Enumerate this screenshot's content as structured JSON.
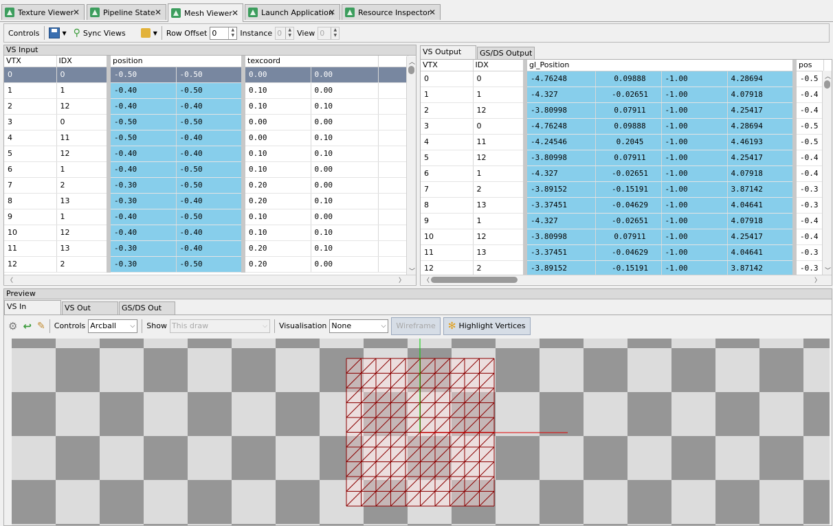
{
  "doc_tabs": [
    {
      "label": "Texture Viewer"
    },
    {
      "label": "Pipeline State"
    },
    {
      "label": "Mesh Viewer"
    },
    {
      "label": "Launch Application"
    },
    {
      "label": "Resource Inspector"
    }
  ],
  "toolbar": {
    "controls_label": "Controls",
    "sync_views_label": "Sync Views",
    "row_offset_label": "Row Offset",
    "row_offset_value": "0",
    "instance_label": "Instance",
    "instance_value": "0",
    "view_label": "View",
    "view_value": "0"
  },
  "vs_input": {
    "title": "VS Input",
    "headers": {
      "vtx": "VTX",
      "idx": "IDX",
      "position": "position",
      "texcoord": "texcoord"
    },
    "rows": [
      [
        "0",
        "0",
        "-0.50",
        "-0.50",
        "0.00",
        "0.00"
      ],
      [
        "1",
        "1",
        "-0.40",
        "-0.50",
        "0.10",
        "0.00"
      ],
      [
        "2",
        "12",
        "-0.40",
        "-0.40",
        "0.10",
        "0.10"
      ],
      [
        "3",
        "0",
        "-0.50",
        "-0.50",
        "0.00",
        "0.00"
      ],
      [
        "4",
        "11",
        "-0.50",
        "-0.40",
        "0.00",
        "0.10"
      ],
      [
        "5",
        "12",
        "-0.40",
        "-0.40",
        "0.10",
        "0.10"
      ],
      [
        "6",
        "1",
        "-0.40",
        "-0.50",
        "0.10",
        "0.00"
      ],
      [
        "7",
        "2",
        "-0.30",
        "-0.50",
        "0.20",
        "0.00"
      ],
      [
        "8",
        "13",
        "-0.30",
        "-0.40",
        "0.20",
        "0.10"
      ],
      [
        "9",
        "1",
        "-0.40",
        "-0.50",
        "0.10",
        "0.00"
      ],
      [
        "10",
        "12",
        "-0.40",
        "-0.40",
        "0.10",
        "0.10"
      ],
      [
        "11",
        "13",
        "-0.30",
        "-0.40",
        "0.20",
        "0.10"
      ],
      [
        "12",
        "2",
        "-0.30",
        "-0.50",
        "0.20",
        "0.00"
      ]
    ]
  },
  "vs_output": {
    "tabs": [
      "VS Output",
      "GS/DS Output"
    ],
    "headers": {
      "vtx": "VTX",
      "idx": "IDX",
      "gl_position": "gl_Position",
      "pos": "pos"
    },
    "rows": [
      [
        "0",
        "0",
        "-4.76248",
        "0.09888",
        "-1.00",
        "4.28694",
        "-0.5"
      ],
      [
        "1",
        "1",
        "-4.327",
        "-0.02651",
        "-1.00",
        "4.07918",
        "-0.4"
      ],
      [
        "2",
        "12",
        "-3.80998",
        "0.07911",
        "-1.00",
        "4.25417",
        "-0.4"
      ],
      [
        "3",
        "0",
        "-4.76248",
        "0.09888",
        "-1.00",
        "4.28694",
        "-0.5"
      ],
      [
        "4",
        "11",
        "-4.24546",
        "0.2045",
        "-1.00",
        "4.46193",
        "-0.5"
      ],
      [
        "5",
        "12",
        "-3.80998",
        "0.07911",
        "-1.00",
        "4.25417",
        "-0.4"
      ],
      [
        "6",
        "1",
        "-4.327",
        "-0.02651",
        "-1.00",
        "4.07918",
        "-0.4"
      ],
      [
        "7",
        "2",
        "-3.89152",
        "-0.15191",
        "-1.00",
        "3.87142",
        "-0.3"
      ],
      [
        "8",
        "13",
        "-3.37451",
        "-0.04629",
        "-1.00",
        "4.04641",
        "-0.3"
      ],
      [
        "9",
        "1",
        "-4.327",
        "-0.02651",
        "-1.00",
        "4.07918",
        "-0.4"
      ],
      [
        "10",
        "12",
        "-3.80998",
        "0.07911",
        "-1.00",
        "4.25417",
        "-0.4"
      ],
      [
        "11",
        "13",
        "-3.37451",
        "-0.04629",
        "-1.00",
        "4.04641",
        "-0.3"
      ],
      [
        "12",
        "2",
        "-3.89152",
        "-0.15191",
        "-1.00",
        "3.87142",
        "-0.3"
      ]
    ]
  },
  "preview": {
    "title": "Preview",
    "tabs": [
      "VS In",
      "VS Out",
      "GS/DS Out"
    ],
    "controls_label": "Controls",
    "controls_value": "Arcball",
    "show_label": "Show",
    "show_value": "This draw",
    "visualisation_label": "Visualisation",
    "visualisation_value": "None",
    "wireframe_label": "Wireframe",
    "highlight_label": "Highlight Vertices"
  },
  "colors": {
    "selected_row": "#7887a0",
    "data_cell": "#87ceeb",
    "checker_dark": "#969696",
    "checker_light": "#dcdcdc",
    "mesh": "#8b0000"
  }
}
